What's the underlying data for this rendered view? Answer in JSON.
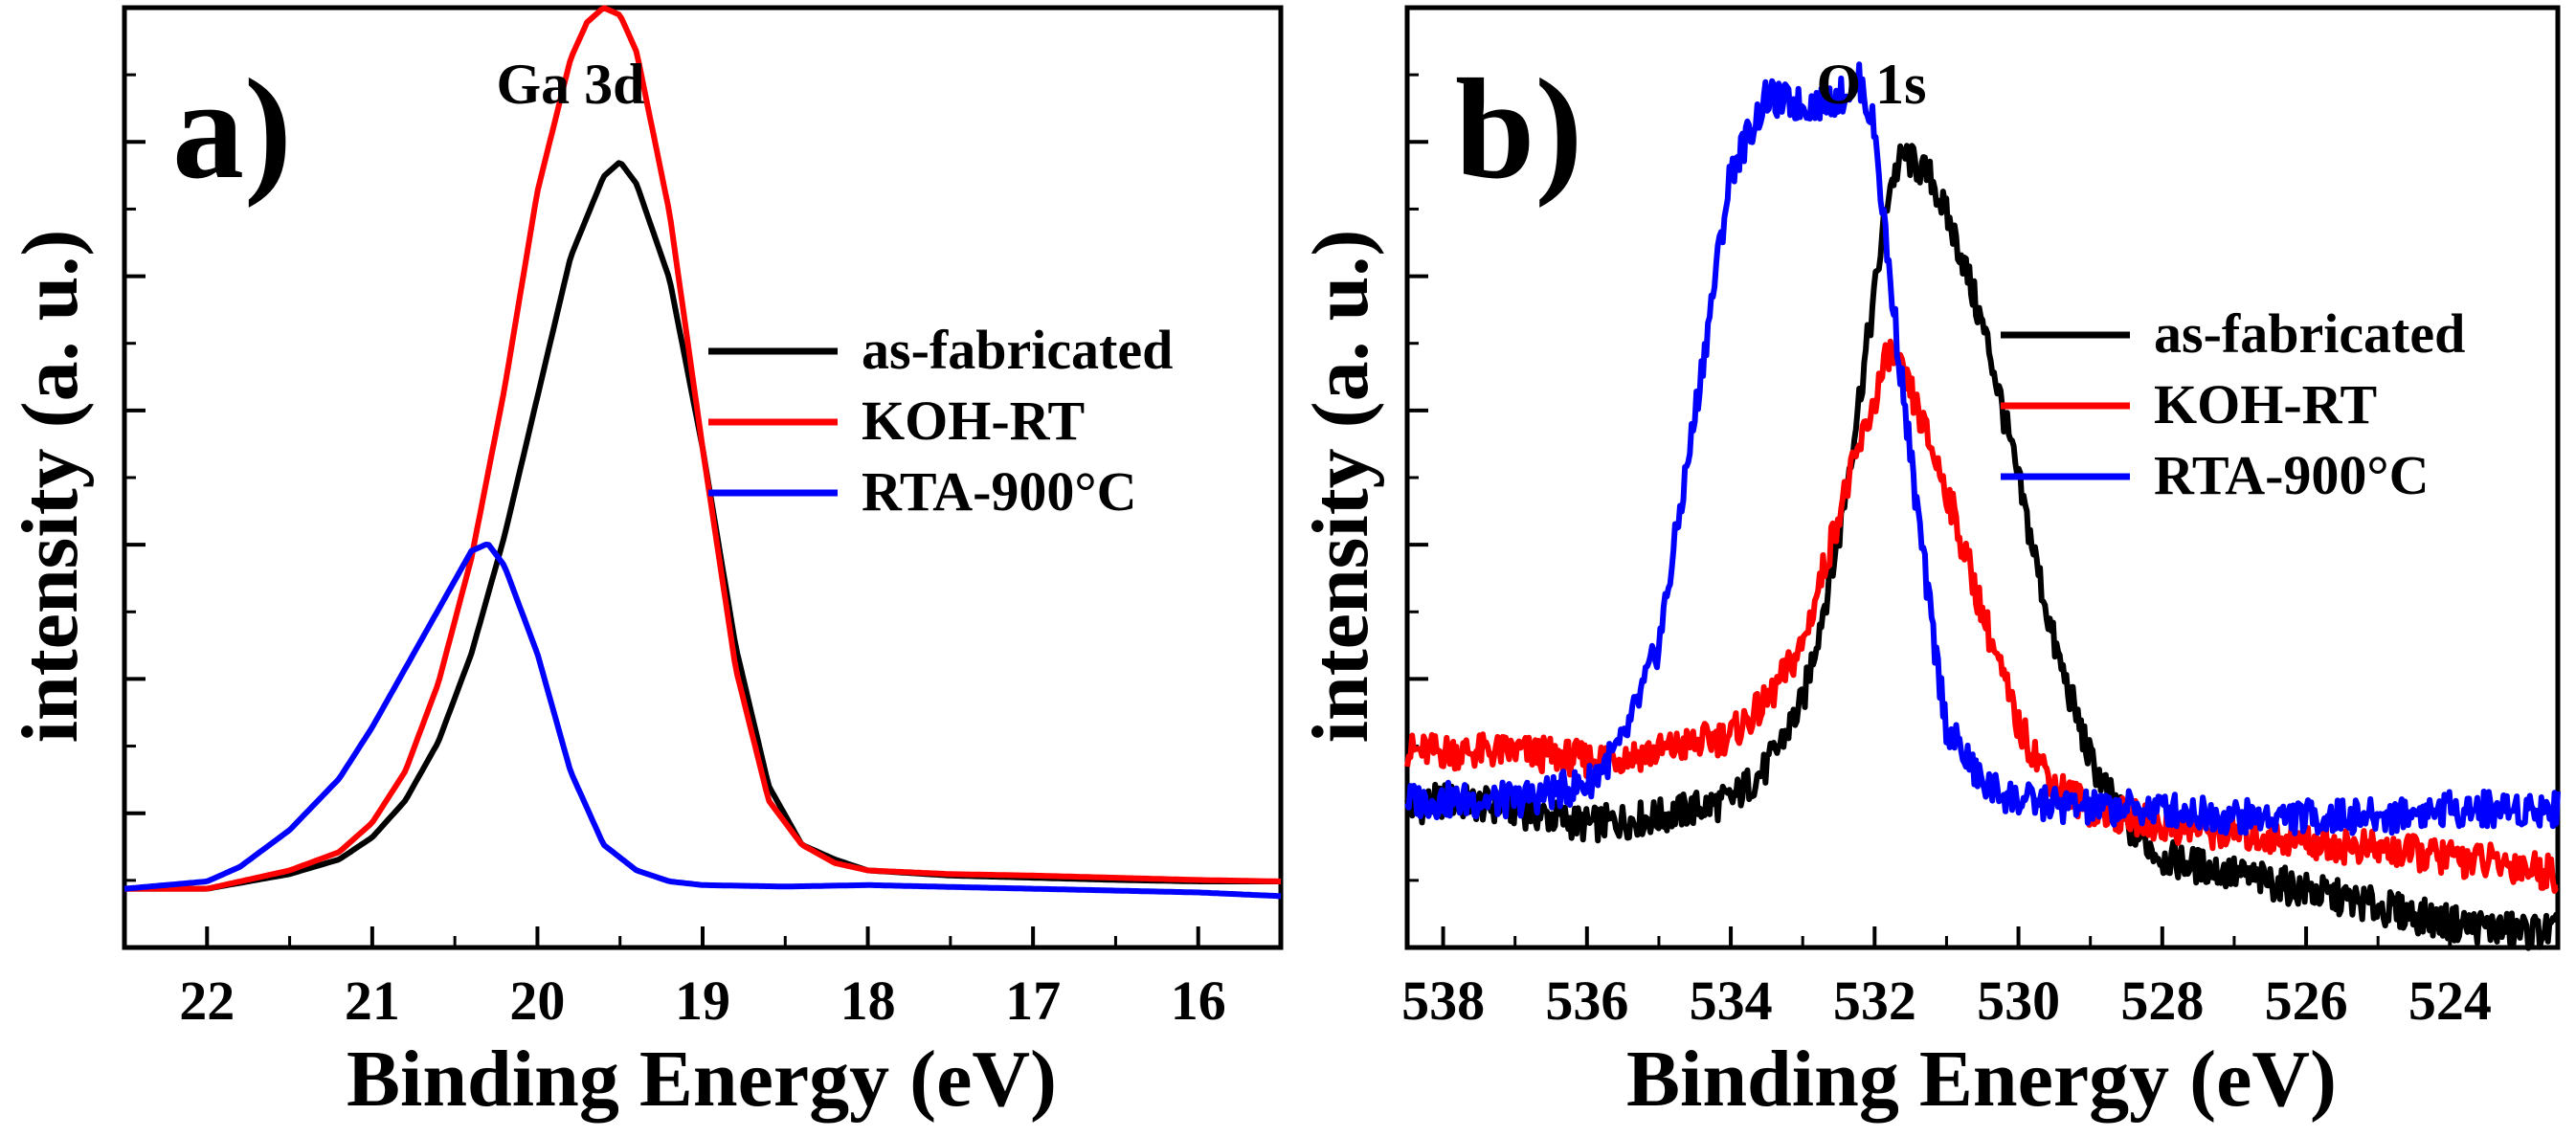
{
  "chart_data": [
    {
      "panel": "a)",
      "type": "line",
      "title": "Ga 3d",
      "xlabel": "Binding Energy (eV)",
      "ylabel": "intensity (a. u.)",
      "xlim": [
        22.5,
        15.5
      ],
      "ylim": [
        -0.08,
        1.2
      ],
      "x_reversed": true,
      "xticks": [
        22,
        21,
        20,
        19,
        18,
        17,
        16
      ],
      "yticks_labeled": false,
      "legend": [
        "as-fabricated",
        "KOH-RT",
        "RTA-900°C"
      ],
      "legend_position": "right",
      "series": [
        {
          "name": "as-fabricated",
          "color": "#000000",
          "x": [
            22.5,
            22.0,
            21.5,
            21.2,
            21.0,
            20.8,
            20.6,
            20.4,
            20.2,
            20.0,
            19.8,
            19.6,
            19.5,
            19.4,
            19.2,
            19.0,
            18.8,
            18.6,
            18.4,
            18.2,
            18.0,
            17.5,
            17.0,
            16.5,
            16.0,
            15.5
          ],
          "y": [
            0.0,
            0.0,
            0.02,
            0.04,
            0.07,
            0.12,
            0.2,
            0.32,
            0.48,
            0.67,
            0.86,
            0.97,
            0.99,
            0.96,
            0.83,
            0.6,
            0.33,
            0.14,
            0.06,
            0.04,
            0.025,
            0.018,
            0.015,
            0.012,
            0.01,
            0.01
          ]
        },
        {
          "name": "KOH-RT",
          "color": "#ff0000",
          "x": [
            22.5,
            22.0,
            21.5,
            21.2,
            21.0,
            20.8,
            20.6,
            20.4,
            20.2,
            20.0,
            19.8,
            19.7,
            19.6,
            19.5,
            19.4,
            19.2,
            19.0,
            18.8,
            18.6,
            18.4,
            18.2,
            18.0,
            17.5,
            17.0,
            16.5,
            16.0,
            15.5
          ],
          "y": [
            0.0,
            0.0,
            0.025,
            0.05,
            0.09,
            0.16,
            0.28,
            0.45,
            0.68,
            0.95,
            1.13,
            1.18,
            1.2,
            1.19,
            1.14,
            0.92,
            0.6,
            0.3,
            0.12,
            0.06,
            0.035,
            0.025,
            0.02,
            0.018,
            0.015,
            0.012,
            0.01
          ]
        },
        {
          "name": "RTA-900°C",
          "color": "#0000ff",
          "x": [
            22.5,
            22.0,
            21.8,
            21.5,
            21.2,
            21.0,
            20.8,
            20.6,
            20.4,
            20.3,
            20.2,
            20.0,
            19.8,
            19.6,
            19.4,
            19.2,
            19.0,
            18.5,
            18.0,
            17.0,
            16.0,
            15.5
          ],
          "y": [
            0.0,
            0.01,
            0.03,
            0.08,
            0.15,
            0.22,
            0.3,
            0.38,
            0.46,
            0.47,
            0.44,
            0.32,
            0.16,
            0.06,
            0.025,
            0.01,
            0.005,
            0.003,
            0.005,
            0.0,
            -0.005,
            -0.01
          ]
        }
      ]
    },
    {
      "panel": "b)",
      "type": "line",
      "title": "O 1s",
      "xlabel": "Binding Energy (eV)",
      "ylabel": "intensity (a. u.)",
      "xlim": [
        538.5,
        522.5
      ],
      "ylim": [
        -0.15,
        1.0
      ],
      "x_reversed": true,
      "xticks": [
        538,
        536,
        534,
        532,
        530,
        528,
        526,
        524
      ],
      "yticks_labeled": false,
      "legend": [
        "as-fabricated",
        "KOH-RT",
        "RTA-900°C"
      ],
      "legend_position": "right",
      "series": [
        {
          "name": "as-fabricated",
          "color": "#000000",
          "x": [
            538.5,
            538.0,
            537.0,
            536.0,
            535.0,
            534.0,
            533.5,
            533.0,
            532.5,
            532.0,
            531.8,
            531.6,
            531.2,
            530.8,
            530.4,
            530.0,
            529.5,
            529.0,
            528.5,
            528.0,
            527.0,
            526.0,
            525.0,
            524.0,
            523.0,
            522.5
          ],
          "y": [
            0.02,
            0.03,
            0.02,
            0.0,
            0.01,
            0.03,
            0.07,
            0.15,
            0.35,
            0.65,
            0.78,
            0.82,
            0.79,
            0.7,
            0.58,
            0.42,
            0.22,
            0.08,
            0.0,
            -0.04,
            -0.06,
            -0.08,
            -0.1,
            -0.12,
            -0.13,
            -0.13
          ]
        },
        {
          "name": "KOH-RT",
          "color": "#ff0000",
          "x": [
            538.5,
            538.0,
            537.0,
            536.0,
            535.0,
            534.0,
            533.5,
            533.0,
            532.5,
            532.0,
            531.8,
            531.5,
            531.0,
            530.5,
            530.0,
            529.5,
            529.0,
            528.0,
            527.0,
            526.0,
            525.0,
            524.0,
            523.0,
            522.5
          ],
          "y": [
            0.09,
            0.09,
            0.09,
            0.08,
            0.09,
            0.11,
            0.15,
            0.22,
            0.38,
            0.52,
            0.58,
            0.53,
            0.41,
            0.26,
            0.12,
            0.05,
            0.02,
            0.0,
            -0.01,
            -0.02,
            -0.03,
            -0.04,
            -0.05,
            -0.06
          ]
        },
        {
          "name": "RTA-900°C",
          "color": "#0000ff",
          "x": [
            538.5,
            538.0,
            537.0,
            536.0,
            535.5,
            535.0,
            534.5,
            534.0,
            533.5,
            533.0,
            532.5,
            532.2,
            532.0,
            531.8,
            531.5,
            531.2,
            531.0,
            530.5,
            530.0,
            529.0,
            528.0,
            527.0,
            526.0,
            525.0,
            524.0,
            523.0,
            522.5
          ],
          "y": [
            0.03,
            0.03,
            0.03,
            0.05,
            0.1,
            0.22,
            0.5,
            0.8,
            0.89,
            0.88,
            0.89,
            0.91,
            0.85,
            0.68,
            0.45,
            0.24,
            0.12,
            0.05,
            0.03,
            0.02,
            0.02,
            0.01,
            0.01,
            0.01,
            0.02,
            0.02,
            0.02
          ]
        }
      ]
    }
  ]
}
